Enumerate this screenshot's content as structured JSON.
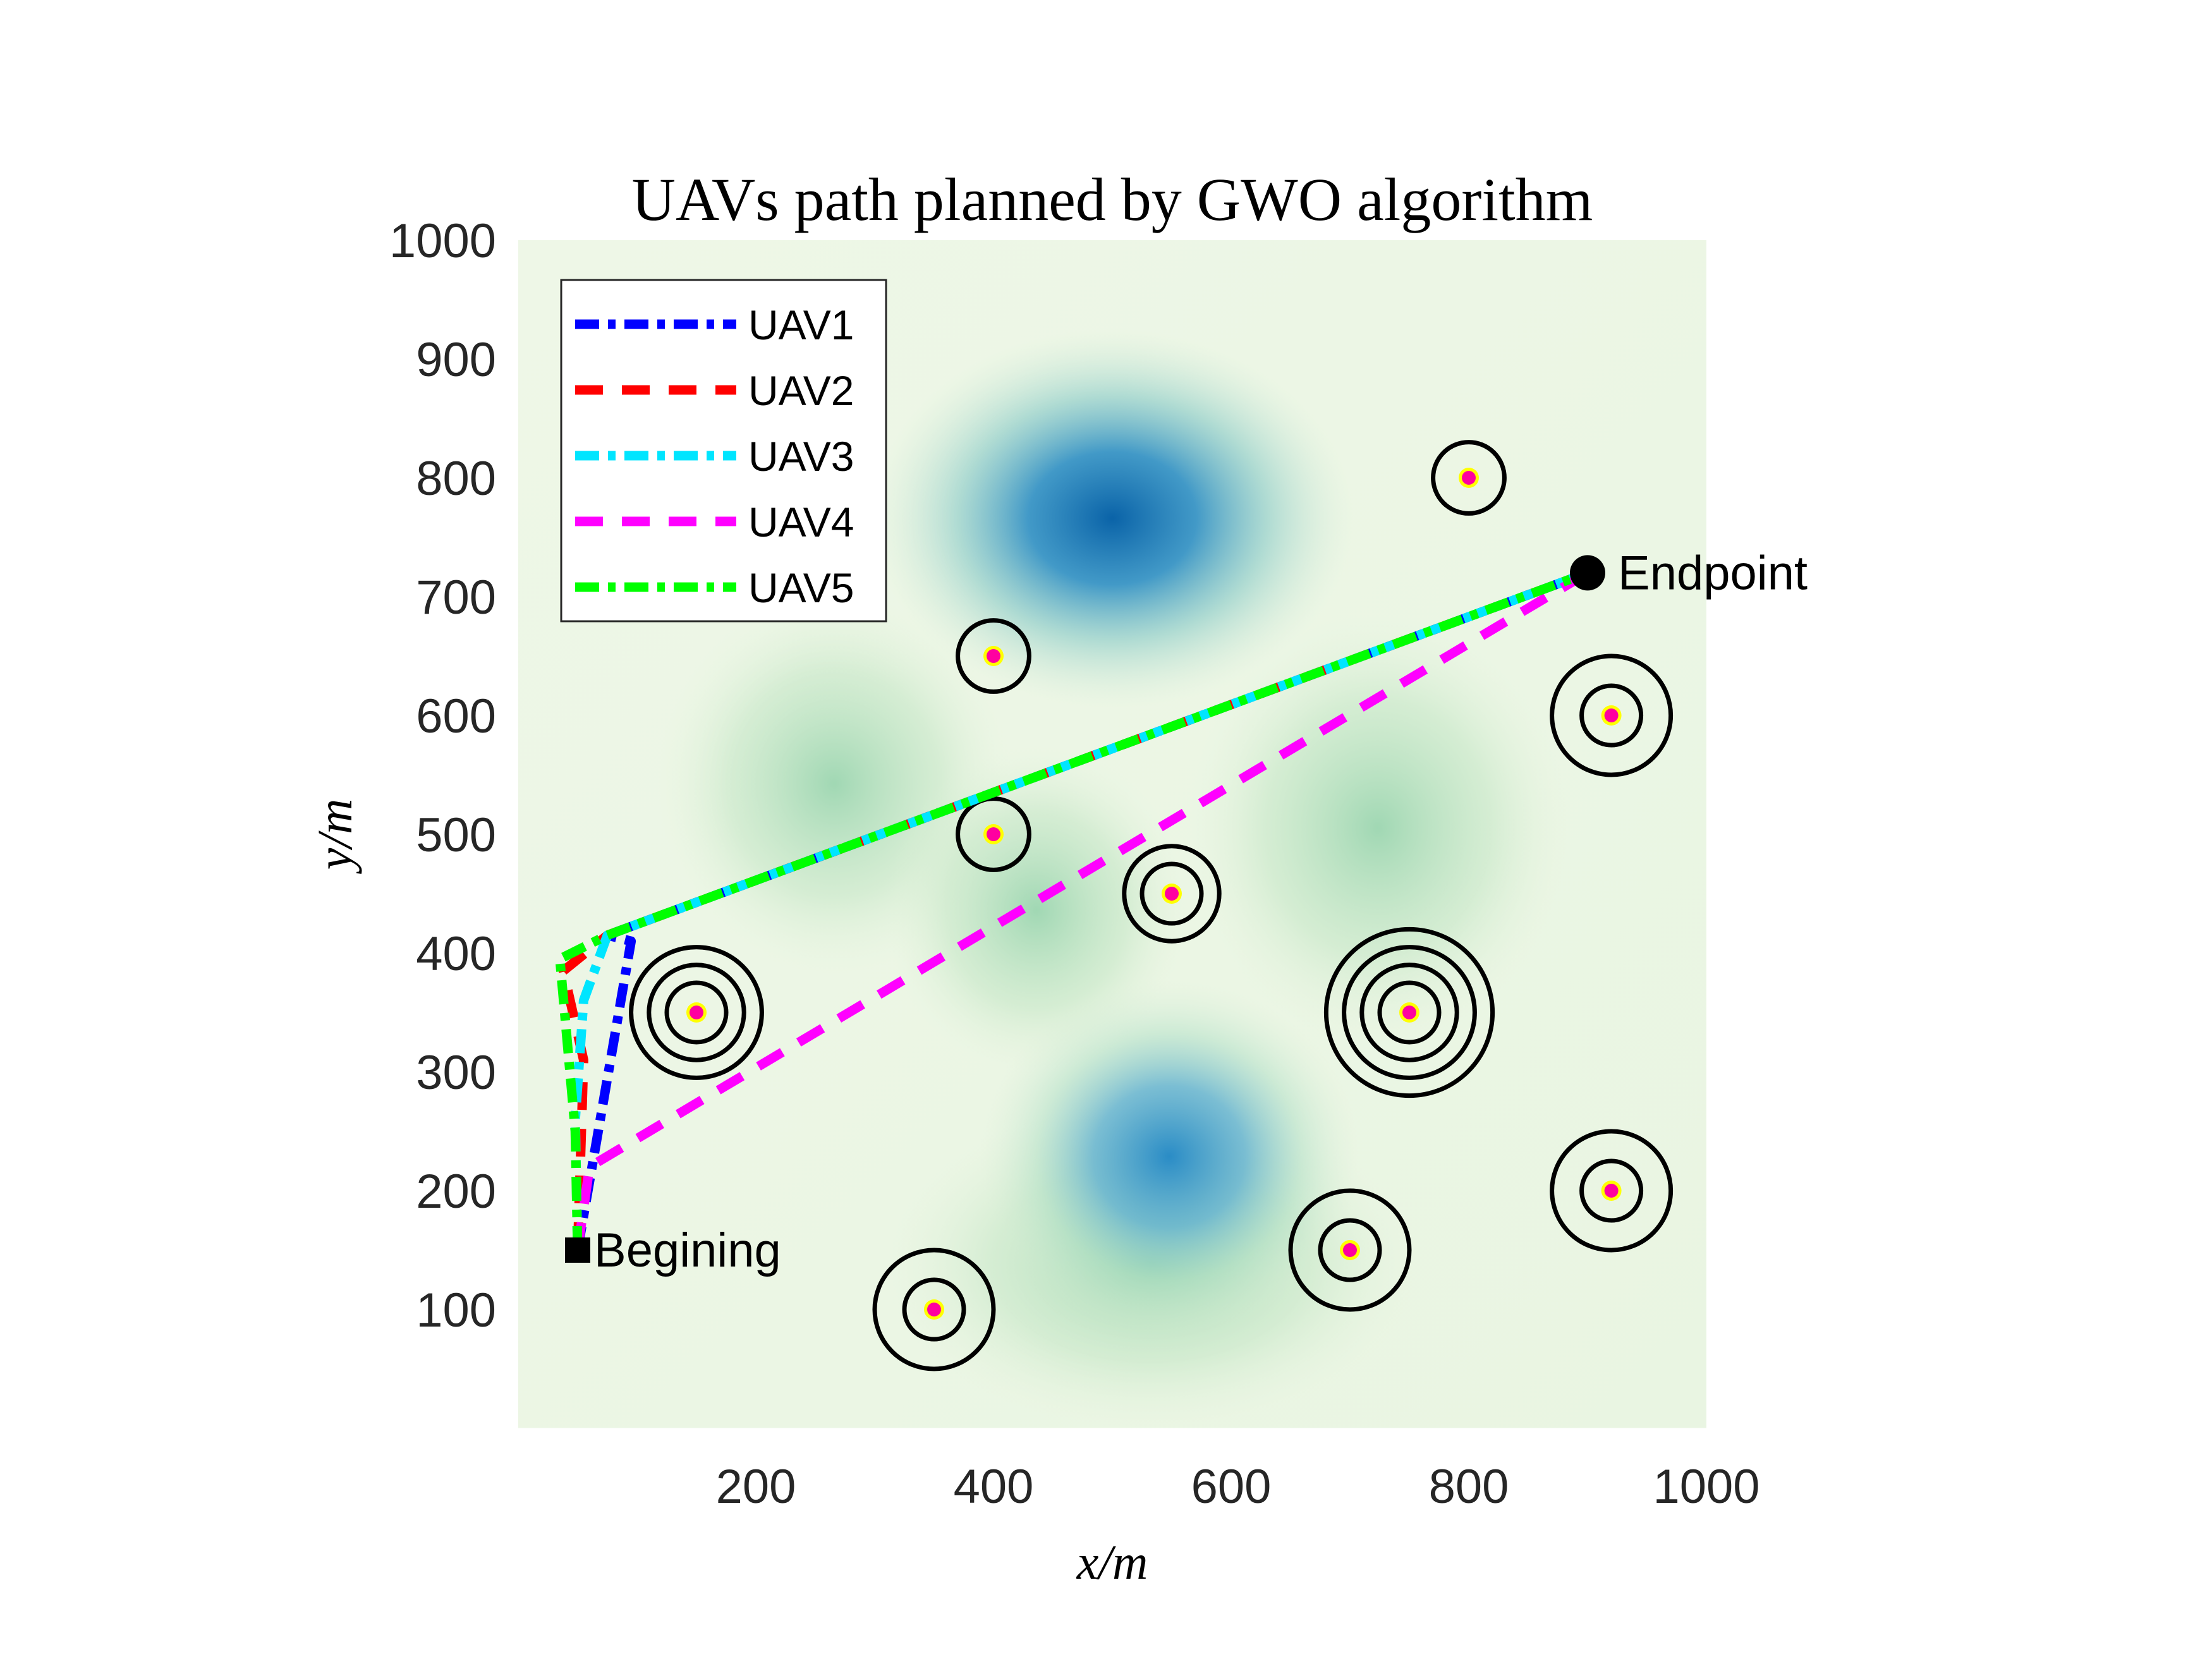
{
  "chart_data": {
    "type": "line",
    "title": "UAVs path planned by GWO algorithm",
    "xlabel": "x/m",
    "ylabel": "y/m",
    "xlim": [
      0,
      1000
    ],
    "ylim": [
      0,
      1000
    ],
    "xticks": [
      200,
      400,
      600,
      800,
      1000
    ],
    "yticks": [
      100,
      200,
      300,
      400,
      500,
      600,
      700,
      800,
      900,
      1000
    ],
    "grid": false,
    "legend_position": "top-left",
    "background": "green-blue terrain/threat intensity map",
    "terrain_colors": {
      "low": "#eef7e6",
      "mid": "#9fd6b2",
      "high": "#0a63a8"
    },
    "start": {
      "label": "Begining",
      "x": 50,
      "y": 150
    },
    "end": {
      "label": "Endpoint",
      "x": 900,
      "y": 720
    },
    "series": [
      {
        "name": "UAV1",
        "color": "#0000ff",
        "style": "dash-dot",
        "x": [
          50,
          95,
          75,
          900
        ],
        "y": [
          150,
          410,
          415,
          720
        ]
      },
      {
        "name": "UAV2",
        "color": "#ff0000",
        "style": "dashed",
        "x": [
          50,
          55,
          38,
          75,
          900
        ],
        "y": [
          150,
          310,
          385,
          415,
          720
        ]
      },
      {
        "name": "UAV3",
        "color": "#00e5ff",
        "style": "dash-dot",
        "x": [
          50,
          48,
          55,
          75,
          900
        ],
        "y": [
          150,
          260,
          360,
          415,
          720
        ]
      },
      {
        "name": "UAV4",
        "color": "#ff00ff",
        "style": "dashed",
        "x": [
          50,
          60,
          900
        ],
        "y": [
          150,
          220,
          720
        ]
      },
      {
        "name": "UAV5",
        "color": "#00ff00",
        "style": "dash-dot",
        "x": [
          50,
          48,
          35,
          75,
          900
        ],
        "y": [
          150,
          250,
          395,
          415,
          720
        ]
      }
    ],
    "threats": [
      {
        "x": 800,
        "y": 800,
        "rings": [
          30
        ]
      },
      {
        "x": 400,
        "y": 650,
        "rings": [
          30
        ]
      },
      {
        "x": 920,
        "y": 600,
        "rings": [
          25,
          50
        ]
      },
      {
        "x": 400,
        "y": 500,
        "rings": [
          30
        ]
      },
      {
        "x": 550,
        "y": 450,
        "rings": [
          25,
          40
        ]
      },
      {
        "x": 150,
        "y": 350,
        "rings": [
          25,
          40,
          55
        ]
      },
      {
        "x": 750,
        "y": 350,
        "rings": [
          25,
          40,
          55,
          70
        ]
      },
      {
        "x": 920,
        "y": 200,
        "rings": [
          25,
          50
        ]
      },
      {
        "x": 700,
        "y": 150,
        "rings": [
          25,
          50
        ]
      },
      {
        "x": 350,
        "y": 100,
        "rings": [
          25,
          50
        ]
      }
    ]
  }
}
